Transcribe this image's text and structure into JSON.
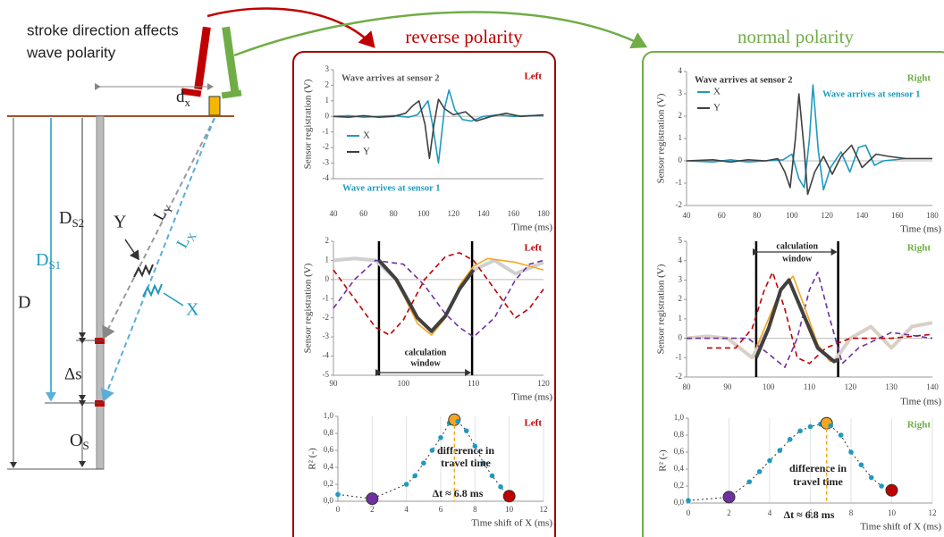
{
  "diagram": {
    "caption_lines": [
      "stroke direction affects",
      "wave polarity"
    ],
    "dx": {
      "main": "d",
      "sub": "x"
    },
    "ly": {
      "main": "L",
      "sub": "Y"
    },
    "lx": {
      "main": "L",
      "sub": "X"
    },
    "y_label": "Y",
    "x_label": "X",
    "ds2": {
      "main": "D",
      "sub": "S2"
    },
    "ds1": {
      "main": "D",
      "sub": "S1"
    },
    "d": "D",
    "delta_s": "Δs",
    "os": {
      "main": "O",
      "sub": "S"
    }
  },
  "panels": [
    {
      "title": "reverse polarity"
    },
    {
      "title": "normal polarity"
    }
  ],
  "chart_data": [
    {
      "type": "line",
      "corner_label": "Left",
      "corner_label_color": "#c00000",
      "xlabel": "Time (ms)",
      "ylabel": "Sensor registration (V)",
      "xlim": [
        40,
        180
      ],
      "xticks": [
        40,
        60,
        80,
        100,
        120,
        140,
        160,
        180
      ],
      "ylim": [
        -4,
        3
      ],
      "yticks": [
        -4,
        -3,
        -2,
        -1,
        0,
        1,
        2,
        3
      ],
      "annotations": [
        "Wave arrives at sensor 2",
        "Wave arrives at sensor 1"
      ],
      "series": [
        {
          "name": "X",
          "color": "#1e9ac0",
          "style": "solid",
          "x": [
            40,
            50,
            60,
            70,
            80,
            90,
            96,
            100,
            103,
            106,
            110,
            114,
            117,
            121,
            126,
            132,
            140,
            150,
            160,
            170,
            180
          ],
          "values": [
            0,
            0.05,
            -0.05,
            0,
            0.05,
            -0.05,
            0.1,
            0.6,
            1.0,
            -0.5,
            -3.0,
            0.5,
            1.7,
            0.4,
            -0.2,
            -0.3,
            0,
            0.1,
            0,
            0.05,
            0.05
          ]
        },
        {
          "name": "Y",
          "color": "#404040",
          "style": "solid",
          "x": [
            40,
            50,
            60,
            70,
            80,
            88,
            93,
            97,
            101,
            104,
            107,
            110,
            114,
            120,
            128,
            135,
            145,
            155,
            165,
            180
          ],
          "values": [
            0,
            -0.05,
            0.05,
            -0.05,
            0,
            0.2,
            0.7,
            1.0,
            -0.5,
            -2.7,
            -0.5,
            1.1,
            0.5,
            0.1,
            0.3,
            -0.3,
            0,
            0.2,
            0,
            0.1
          ]
        }
      ]
    },
    {
      "type": "line",
      "corner_label": "Left",
      "corner_label_color": "#c00000",
      "xlabel": "Time (ms)",
      "ylabel": "Sensor registration (V)",
      "xlim": [
        90,
        120
      ],
      "xticks": [
        90,
        100,
        110,
        120
      ],
      "ylim": [
        -5,
        2
      ],
      "yticks": [
        -5,
        -4,
        -3,
        -2,
        -1,
        0,
        1,
        2
      ],
      "window": [
        96.5,
        109.8
      ],
      "window_label_lines": [
        "calculation",
        "window"
      ],
      "series": [
        {
          "color": "#d0d0d0",
          "style": "thick",
          "x": [
            90,
            93,
            96,
            99,
            102,
            104,
            106,
            108,
            110,
            113,
            116,
            120
          ],
          "values": [
            1.0,
            1.1,
            1.0,
            0,
            -2.0,
            -2.7,
            -1.9,
            -0.5,
            0.5,
            1.0,
            0.3,
            0.9
          ]
        },
        {
          "color": "#c00000",
          "style": "dashed",
          "x": [
            90,
            93,
            96,
            98,
            100,
            103,
            106,
            108,
            110,
            113,
            116,
            118,
            120
          ],
          "values": [
            0.5,
            -1,
            -2.5,
            -2.9,
            -2.1,
            0,
            1.2,
            1.4,
            1.0,
            -0.5,
            -2,
            -1.5,
            -0.5
          ]
        },
        {
          "color": "#7030a0",
          "style": "dashed",
          "x": [
            90,
            93,
            96,
            100,
            103,
            106,
            108,
            110,
            113,
            116,
            118,
            120
          ],
          "values": [
            -1.5,
            0,
            1.0,
            0.8,
            -0.3,
            -1.8,
            -2.5,
            -3,
            -2,
            0,
            0.8,
            1
          ]
        },
        {
          "color": "#f5a623",
          "style": "solid",
          "x": [
            96.5,
            98,
            100,
            102,
            104,
            106,
            108,
            110,
            112,
            116,
            120
          ],
          "values": [
            0.9,
            0.5,
            -0.8,
            -2.3,
            -2.9,
            -2.0,
            -0.3,
            0.7,
            1.1,
            0.9,
            0.5
          ]
        },
        {
          "color": "#404040",
          "style": "thick",
          "x": [
            96.5,
            99,
            102,
            104,
            106,
            108,
            110
          ],
          "values": [
            1.0,
            0,
            -2.0,
            -2.7,
            -1.9,
            -0.5,
            0.5
          ]
        }
      ]
    },
    {
      "type": "scatter",
      "corner_label": "Left",
      "corner_label_color": "#c00000",
      "xlabel": "Time shift of X (ms)",
      "ylabel": "R² (-)",
      "grid": "x",
      "xlim": [
        0,
        12
      ],
      "xticks": [
        0,
        2,
        4,
        6,
        8,
        10,
        12
      ],
      "ylim": [
        0,
        1
      ],
      "yticks": [
        {
          "value": 0,
          "label": "0,0"
        },
        {
          "value": 0.2,
          "label": "0,2"
        },
        {
          "value": 0.4,
          "label": "0,4"
        },
        {
          "value": 0.6,
          "label": "0,6"
        },
        {
          "value": 0.8,
          "label": "0,8"
        },
        {
          "value": 1,
          "label": "1,0"
        }
      ],
      "annotation_lines": [
        "difference in",
        "travel time"
      ],
      "delta_label": "Δt ≈ 6.8 ms",
      "delta_t": 6.8,
      "series": [
        {
          "color": "#1e9ac0",
          "x": [
            0,
            2,
            4,
            4.5,
            5,
            5.5,
            6,
            6.5,
            6.8,
            7,
            7.5,
            8,
            8.5,
            9,
            9.5,
            10
          ],
          "values": [
            0.08,
            0.03,
            0.2,
            0.3,
            0.45,
            0.6,
            0.75,
            0.92,
            0.96,
            0.94,
            0.83,
            0.65,
            0.45,
            0.3,
            0.17,
            0.06
          ],
          "marker_colors": [
            "#1e9ac0",
            "#7030a0",
            "#1e9ac0",
            "#1e9ac0",
            "#1e9ac0",
            "#1e9ac0",
            "#1e9ac0",
            "#1e9ac0",
            "#f5a623",
            "#1e9ac0",
            "#1e9ac0",
            "#1e9ac0",
            "#1e9ac0",
            "#1e9ac0",
            "#1e9ac0",
            "#c00000"
          ]
        }
      ]
    },
    {
      "type": "line",
      "corner_label": "Right",
      "corner_label_color": "#70ad47",
      "xlabel": "Time (ms)",
      "ylabel": "Sensor registration (V)",
      "xlim": [
        40,
        180
      ],
      "xticks": [
        40,
        60,
        80,
        100,
        120,
        140,
        160,
        180
      ],
      "ylim": [
        -2,
        4
      ],
      "yticks": [
        -2,
        -1,
        0,
        1,
        2,
        3,
        4
      ],
      "annotations": [
        "Wave arrives at sensor 2",
        "Wave arrives at sensor 1"
      ],
      "series": [
        {
          "name": "X",
          "color": "#1e9ac0",
          "style": "solid",
          "x": [
            40,
            55,
            65,
            75,
            85,
            95,
            100,
            104,
            107,
            110,
            112,
            115,
            118,
            122,
            128,
            133,
            138,
            142,
            147,
            152,
            165,
            180
          ],
          "values": [
            0,
            -0.05,
            0.05,
            -0.05,
            0,
            0.05,
            0.3,
            -0.8,
            -1.2,
            1.0,
            3.4,
            0.5,
            -1.3,
            -0.3,
            0.4,
            -0.5,
            0.6,
            0.7,
            -0.2,
            0,
            0.1,
            0.1
          ]
        },
        {
          "name": "Y",
          "color": "#404040",
          "style": "solid",
          "x": [
            40,
            55,
            65,
            75,
            85,
            92,
            96,
            99,
            102,
            104,
            107,
            109,
            113,
            118,
            123,
            128,
            134,
            140,
            148,
            155,
            165,
            180
          ],
          "values": [
            0,
            0.05,
            -0.05,
            0.05,
            0,
            0.1,
            -0.5,
            -1.2,
            1.0,
            3.0,
            0.5,
            -1.5,
            -0.5,
            0.2,
            -0.6,
            0.2,
            0.7,
            -0.3,
            0.3,
            0.2,
            0.1,
            0.1
          ]
        }
      ]
    },
    {
      "type": "line",
      "corner_label": "Right",
      "corner_label_color": "#70ad47",
      "xlabel": "Time (ms)",
      "ylabel": "Sensor registration (V)",
      "xlim": [
        80,
        140
      ],
      "xticks": [
        80,
        90,
        100,
        110,
        120,
        130,
        140
      ],
      "ylim": [
        -2,
        5
      ],
      "yticks": [
        -2,
        -1,
        0,
        1,
        2,
        3,
        4,
        5
      ],
      "window": [
        97,
        117
      ],
      "window_label_lines": [
        "calculation",
        "window"
      ],
      "series": [
        {
          "color": "#d9d0c5",
          "style": "thick",
          "x": [
            80,
            85,
            90,
            96,
            100,
            103,
            105,
            108,
            112,
            116,
            120,
            125,
            130,
            135,
            140
          ],
          "values": [
            0,
            0.1,
            0,
            -1,
            0.5,
            2.5,
            3.0,
            1.5,
            -0.5,
            -1.2,
            0,
            0.6,
            -0.5,
            0.6,
            0.8
          ]
        },
        {
          "color": "#c00000",
          "style": "dashed",
          "x": [
            85,
            92,
            96,
            99,
            101,
            104,
            107,
            110,
            114,
            120,
            130,
            140
          ],
          "values": [
            -0.5,
            -0.5,
            0.5,
            2.5,
            3.4,
            1.5,
            -1,
            -1.3,
            -0.5,
            0,
            0,
            0.2
          ]
        },
        {
          "color": "#7030a0",
          "style": "dashed",
          "x": [
            80,
            95,
            100,
            104,
            107,
            110,
            112,
            115,
            118,
            122,
            130,
            140
          ],
          "values": [
            0,
            0,
            -0.8,
            -1.5,
            0,
            2.5,
            3.4,
            1,
            -1.3,
            -0.5,
            0.3,
            0
          ]
        },
        {
          "color": "#f5a623",
          "style": "solid",
          "x": [
            97,
            100,
            103,
            106,
            109,
            112,
            115,
            117
          ],
          "values": [
            -0.5,
            1,
            2.5,
            3.2,
            1.5,
            -0.3,
            -1.2,
            -1.1
          ]
        },
        {
          "color": "#404040",
          "style": "thick",
          "x": [
            97,
            100,
            103,
            105,
            108,
            112,
            116,
            117
          ],
          "values": [
            -1,
            0.5,
            2.5,
            3.0,
            1.5,
            -0.5,
            -1.2,
            -1.1
          ]
        }
      ]
    },
    {
      "type": "scatter",
      "corner_label": "Right",
      "corner_label_color": "#70ad47",
      "xlabel": "Time shift of X (ms)",
      "ylabel": "R² (-)",
      "grid": "x",
      "xlim": [
        0,
        12
      ],
      "xticks": [
        0,
        2,
        4,
        6,
        8,
        10,
        12
      ],
      "ylim": [
        0,
        1
      ],
      "yticks": [
        {
          "value": 0,
          "label": "0,0"
        },
        {
          "value": 0.2,
          "label": "0,2"
        },
        {
          "value": 0.4,
          "label": "0,4"
        },
        {
          "value": 0.6,
          "label": "0,6"
        },
        {
          "value": 0.8,
          "label": "0,8"
        },
        {
          "value": 1,
          "label": "1,0"
        }
      ],
      "annotation_lines": [
        "difference in",
        "travel time"
      ],
      "delta_label": "Δt ≈ 6.8 ms",
      "delta_t": 6.8,
      "series": [
        {
          "color": "#1e9ac0",
          "x": [
            0,
            2,
            3,
            3.5,
            4,
            4.5,
            5,
            5.5,
            6,
            6.5,
            6.8,
            7,
            7.5,
            8,
            8.5,
            9,
            9.5,
            10
          ],
          "values": [
            0.03,
            0.07,
            0.25,
            0.37,
            0.5,
            0.62,
            0.75,
            0.85,
            0.9,
            0.93,
            0.94,
            0.91,
            0.8,
            0.6,
            0.45,
            0.3,
            0.2,
            0.15
          ],
          "marker_colors": [
            "#1e9ac0",
            "#7030a0",
            "#1e9ac0",
            "#1e9ac0",
            "#1e9ac0",
            "#1e9ac0",
            "#1e9ac0",
            "#1e9ac0",
            "#1e9ac0",
            "#1e9ac0",
            "#f5a623",
            "#1e9ac0",
            "#1e9ac0",
            "#1e9ac0",
            "#1e9ac0",
            "#1e9ac0",
            "#1e9ac0",
            "#c00000"
          ]
        }
      ]
    }
  ]
}
